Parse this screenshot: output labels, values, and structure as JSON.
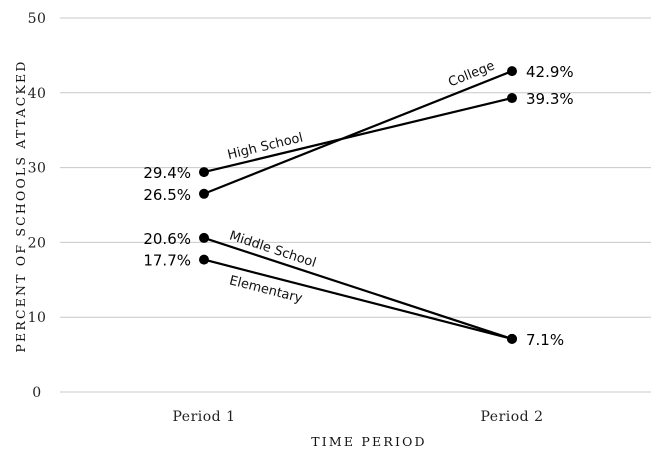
{
  "chart_data": {
    "type": "line",
    "xlabel": "TIME PERIOD",
    "ylabel": "PERCENT OF SCHOOLS ATTACKED",
    "categories": [
      "Period 1",
      "Period 2"
    ],
    "ylim": [
      0,
      50
    ],
    "yticks": [
      "0",
      "10",
      "20",
      "30",
      "40",
      "50"
    ],
    "grid": true,
    "series": [
      {
        "name": "High School",
        "values": [
          29.4,
          39.3
        ],
        "labels": [
          "29.4%",
          "39.3%"
        ]
      },
      {
        "name": "College",
        "values": [
          26.5,
          42.9
        ],
        "labels": [
          "26.5%",
          "42.9%"
        ]
      },
      {
        "name": "Middle School",
        "values": [
          20.6,
          7.1
        ],
        "labels": [
          "20.6%",
          "7.1%"
        ]
      },
      {
        "name": "Elementary",
        "values": [
          17.7,
          7.1
        ],
        "labels": [
          "17.7%",
          ""
        ]
      }
    ]
  }
}
